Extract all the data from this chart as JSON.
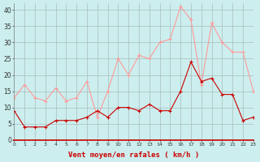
{
  "wind_avg": [
    9,
    4,
    4,
    4,
    6,
    6,
    6,
    7,
    9,
    7,
    10,
    10,
    9,
    11,
    9,
    9,
    15,
    24,
    18,
    19,
    14,
    14,
    6,
    7
  ],
  "wind_gust": [
    13,
    17,
    13,
    12,
    16,
    12,
    13,
    18,
    7,
    15,
    25,
    20,
    26,
    25,
    30,
    31,
    41,
    37,
    17,
    36,
    30,
    27,
    27,
    15
  ],
  "avg_color": "#cc0000",
  "gust_color": "#ff9999",
  "bg_color": "#cceeee",
  "grid_color": "#aabbbb",
  "xlabel": "Vent moyen/en rafales ( km/h )",
  "xlabel_color": "#cc0000",
  "ylabel_ticks": [
    0,
    5,
    10,
    15,
    20,
    25,
    30,
    35,
    40
  ],
  "ylim": [
    0,
    42
  ],
  "xlim": [
    0,
    23
  ]
}
